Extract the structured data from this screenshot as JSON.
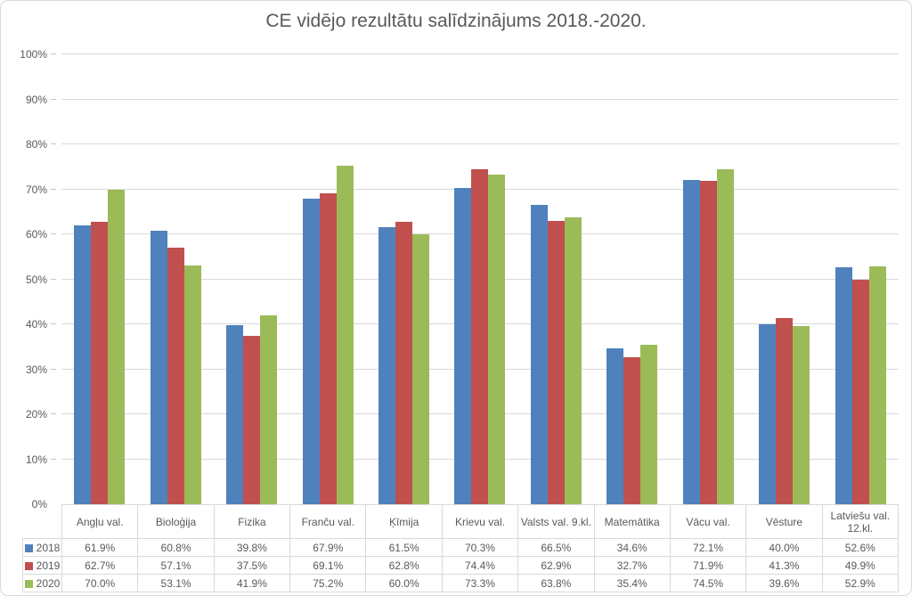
{
  "window": {
    "background": "#FFFFFF",
    "frame_border": "#D9D9D9"
  },
  "chart_data": {
    "type": "bar",
    "title": "CE vidējo rezultātu salīdzinājums 2018.-2020.",
    "categories": [
      "Angļu val.",
      "Bioloģija",
      "Fizika",
      "Franču val.",
      "Ķīmija",
      "Krievu val.",
      "Valsts val. 9.kl.",
      "Matemātika",
      "Vācu val.",
      "Vēsture",
      "Latviešu val. 12.kl."
    ],
    "series": [
      {
        "name": "2018",
        "color": "#4F81BD",
        "values": [
          61.9,
          60.8,
          39.8,
          67.9,
          61.5,
          70.3,
          66.5,
          34.6,
          72.1,
          40.0,
          52.6
        ]
      },
      {
        "name": "2019",
        "color": "#C0504D",
        "values": [
          62.7,
          57.1,
          37.5,
          69.1,
          62.8,
          74.4,
          62.9,
          32.7,
          71.9,
          41.3,
          49.9
        ]
      },
      {
        "name": "2020",
        "color": "#9BBB59",
        "values": [
          70.0,
          53.1,
          41.9,
          75.2,
          60.0,
          73.3,
          63.8,
          35.4,
          74.5,
          39.6,
          52.9
        ]
      }
    ],
    "ylim": [
      0,
      100
    ],
    "ytick_step": 10,
    "ytick_labels": [
      "0%",
      "10%",
      "20%",
      "30%",
      "40%",
      "50%",
      "60%",
      "70%",
      "80%",
      "90%",
      "100%"
    ],
    "grid": true,
    "legend_position": "data-table-left",
    "value_suffix": "%",
    "value_decimals": 1,
    "data_table_shown": true,
    "styles": {
      "gridline": "#D9D9D9",
      "axis_text": "#595959",
      "title_text": "#595959",
      "table_border": "#D9D9D9",
      "table_text": "#595959"
    }
  }
}
